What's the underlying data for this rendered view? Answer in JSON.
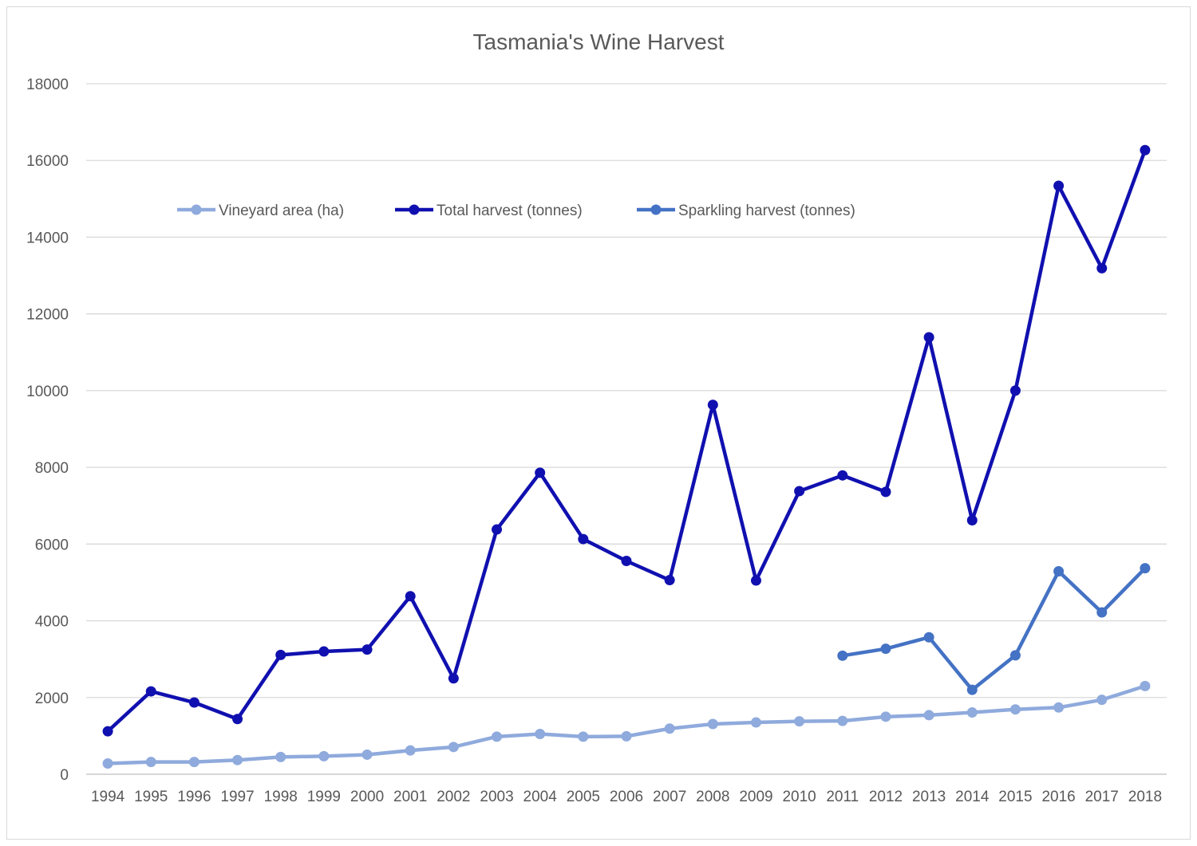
{
  "chart_data": {
    "type": "line",
    "title": "Tasmania's Wine Harvest",
    "xlabel": "",
    "ylabel": "",
    "ylim": [
      0,
      18000
    ],
    "yticks": [
      0,
      2000,
      4000,
      6000,
      8000,
      10000,
      12000,
      14000,
      16000,
      18000
    ],
    "grid": true,
    "legend_position": "upper-left inside plot",
    "categories": [
      "1994",
      "1995",
      "1996",
      "1997",
      "1998",
      "1999",
      "2000",
      "2001",
      "2002",
      "2003",
      "2004",
      "2005",
      "2006",
      "2007",
      "2008",
      "2009",
      "2010",
      "2011",
      "2012",
      "2013",
      "2014",
      "2015",
      "2016",
      "2017",
      "2018"
    ],
    "series": [
      {
        "name": "Vineyard area (ha)",
        "color": "#8faadc",
        "values": [
          280,
          320,
          320,
          370,
          450,
          470,
          510,
          620,
          710,
          980,
          1050,
          980,
          990,
          1190,
          1310,
          1350,
          1380,
          1390,
          1500,
          1540,
          1610,
          1690,
          1740,
          1940,
          2300
        ]
      },
      {
        "name": "Total harvest (tonnes)",
        "color": "#1010b0",
        "values": [
          1120,
          2160,
          1870,
          1440,
          3110,
          3200,
          3250,
          4640,
          2500,
          6380,
          7860,
          6130,
          5560,
          5060,
          9630,
          5050,
          7380,
          7790,
          7360,
          11390,
          6620,
          10000,
          15340,
          13190,
          16270
        ]
      },
      {
        "name": "Sparkling harvest (tonnes)",
        "color": "#4472c4",
        "values": [
          null,
          null,
          null,
          null,
          null,
          null,
          null,
          null,
          null,
          null,
          null,
          null,
          null,
          null,
          null,
          null,
          null,
          3090,
          3270,
          3570,
          2200,
          3100,
          5290,
          4220,
          5370
        ]
      }
    ]
  }
}
